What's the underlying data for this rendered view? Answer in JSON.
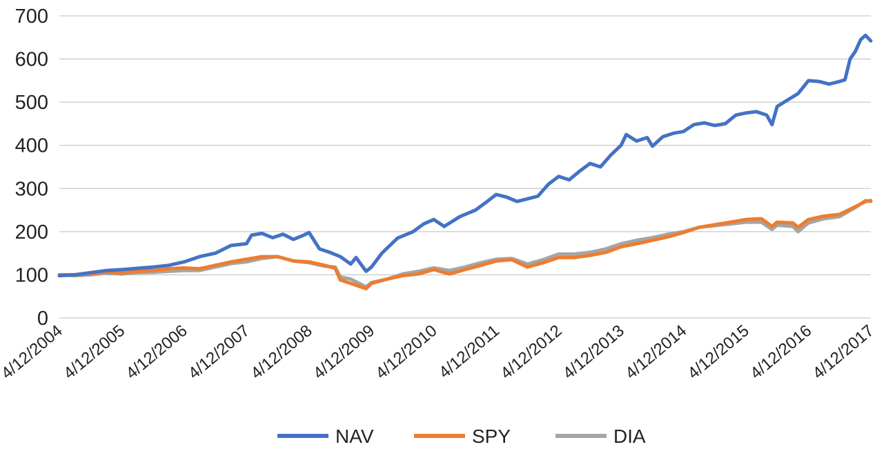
{
  "chart_data": {
    "type": "line",
    "title": "",
    "xlabel": "",
    "ylabel": "",
    "ylim": [
      0,
      700
    ],
    "xlim": [
      "4/12/2004",
      "4/12/2017"
    ],
    "yticks": [
      "0",
      "100",
      "200",
      "300",
      "400",
      "500",
      "600",
      "700"
    ],
    "xticks": [
      "4/12/2004",
      "4/12/2005",
      "4/12/2006",
      "4/12/2007",
      "4/12/2008",
      "4/12/2009",
      "4/12/2010",
      "4/12/2011",
      "4/12/2012",
      "4/12/2013",
      "4/12/2014",
      "4/12/2015",
      "4/12/2016",
      "4/12/2017"
    ],
    "grid": true,
    "legend_position": "bottom",
    "series": [
      {
        "name": "NAV",
        "color": "#4472C4",
        "points": [
          [
            "4/12/2004",
            98
          ],
          [
            "7/12/2004",
            100
          ],
          [
            "10/12/2004",
            105
          ],
          [
            "1/12/2005",
            110
          ],
          [
            "4/12/2005",
            112
          ],
          [
            "7/12/2005",
            115
          ],
          [
            "10/12/2005",
            118
          ],
          [
            "1/12/2006",
            122
          ],
          [
            "4/12/2006",
            130
          ],
          [
            "7/12/2006",
            142
          ],
          [
            "10/12/2006",
            150
          ],
          [
            "1/12/2007",
            168
          ],
          [
            "4/12/2007",
            172
          ],
          [
            "5/12/2007",
            192
          ],
          [
            "7/12/2007",
            196
          ],
          [
            "9/12/2007",
            186
          ],
          [
            "11/12/2007",
            194
          ],
          [
            "1/12/2008",
            182
          ],
          [
            "3/12/2008",
            192
          ],
          [
            "4/12/2008",
            198
          ],
          [
            "6/12/2008",
            160
          ],
          [
            "8/12/2008",
            152
          ],
          [
            "10/12/2008",
            142
          ],
          [
            "12/12/2008",
            125
          ],
          [
            "1/12/2009",
            140
          ],
          [
            "3/12/2009",
            108
          ],
          [
            "4/12/2009",
            118
          ],
          [
            "6/12/2009",
            150
          ],
          [
            "9/12/2009",
            185
          ],
          [
            "12/12/2009",
            200
          ],
          [
            "2/12/2010",
            218
          ],
          [
            "4/12/2010",
            228
          ],
          [
            "6/12/2010",
            212
          ],
          [
            "9/12/2010",
            235
          ],
          [
            "12/12/2010",
            250
          ],
          [
            "2/12/2011",
            268
          ],
          [
            "4/12/2011",
            286
          ],
          [
            "6/12/2011",
            280
          ],
          [
            "8/12/2011",
            270
          ],
          [
            "10/12/2011",
            276
          ],
          [
            "12/12/2011",
            282
          ],
          [
            "2/12/2012",
            310
          ],
          [
            "4/12/2012",
            328
          ],
          [
            "6/12/2012",
            320
          ],
          [
            "8/12/2012",
            340
          ],
          [
            "10/12/2012",
            358
          ],
          [
            "12/12/2012",
            350
          ],
          [
            "2/12/2013",
            378
          ],
          [
            "4/12/2013",
            400
          ],
          [
            "5/12/2013",
            425
          ],
          [
            "7/12/2013",
            410
          ],
          [
            "9/12/2013",
            418
          ],
          [
            "10/12/2013",
            398
          ],
          [
            "12/12/2013",
            420
          ],
          [
            "2/12/2014",
            428
          ],
          [
            "4/12/2014",
            432
          ],
          [
            "6/12/2014",
            448
          ],
          [
            "8/12/2014",
            452
          ],
          [
            "10/12/2014",
            446
          ],
          [
            "12/12/2014",
            450
          ],
          [
            "2/12/2015",
            470
          ],
          [
            "4/12/2015",
            475
          ],
          [
            "6/12/2015",
            478
          ],
          [
            "8/12/2015",
            470
          ],
          [
            "9/12/2015",
            448
          ],
          [
            "10/12/2015",
            490
          ],
          [
            "12/12/2015",
            505
          ],
          [
            "2/12/2016",
            520
          ],
          [
            "4/12/2016",
            550
          ],
          [
            "6/12/2016",
            548
          ],
          [
            "8/12/2016",
            542
          ],
          [
            "10/12/2016",
            548
          ],
          [
            "11/12/2016",
            552
          ],
          [
            "12/12/2016",
            600
          ],
          [
            "1/12/2017",
            618
          ],
          [
            "2/12/2017",
            645
          ],
          [
            "3/12/2017",
            655
          ],
          [
            "4/12/2017",
            642
          ]
        ]
      },
      {
        "name": "SPY",
        "color": "#ED7D31",
        "points": [
          [
            "4/12/2004",
            100
          ],
          [
            "7/12/2004",
            100
          ],
          [
            "10/12/2004",
            102
          ],
          [
            "1/12/2005",
            106
          ],
          [
            "4/12/2005",
            104
          ],
          [
            "7/12/2005",
            108
          ],
          [
            "10/12/2005",
            110
          ],
          [
            "1/12/2006",
            114
          ],
          [
            "4/12/2006",
            116
          ],
          [
            "7/12/2006",
            114
          ],
          [
            "10/12/2006",
            122
          ],
          [
            "1/12/2007",
            130
          ],
          [
            "4/12/2007",
            136
          ],
          [
            "7/12/2007",
            142
          ],
          [
            "10/12/2007",
            142
          ],
          [
            "1/12/2008",
            132
          ],
          [
            "4/12/2008",
            130
          ],
          [
            "7/12/2008",
            122
          ],
          [
            "9/12/2008",
            115
          ],
          [
            "10/12/2008",
            88
          ],
          [
            "12/12/2008",
            80
          ],
          [
            "3/12/2009",
            68
          ],
          [
            "4/12/2009",
            80
          ],
          [
            "7/12/2009",
            90
          ],
          [
            "10/12/2009",
            98
          ],
          [
            "1/12/2010",
            102
          ],
          [
            "4/12/2010",
            112
          ],
          [
            "7/12/2010",
            102
          ],
          [
            "10/12/2010",
            112
          ],
          [
            "1/12/2011",
            122
          ],
          [
            "4/12/2011",
            132
          ],
          [
            "7/12/2011",
            135
          ],
          [
            "10/12/2011",
            118
          ],
          [
            "1/12/2012",
            128
          ],
          [
            "4/12/2012",
            140
          ],
          [
            "7/12/2012",
            140
          ],
          [
            "10/12/2012",
            145
          ],
          [
            "1/12/2013",
            152
          ],
          [
            "4/12/2013",
            165
          ],
          [
            "7/12/2013",
            172
          ],
          [
            "10/12/2013",
            180
          ],
          [
            "1/12/2014",
            188
          ],
          [
            "4/12/2014",
            198
          ],
          [
            "7/12/2014",
            210
          ],
          [
            "10/12/2014",
            216
          ],
          [
            "1/12/2015",
            222
          ],
          [
            "4/12/2015",
            228
          ],
          [
            "7/12/2015",
            230
          ],
          [
            "9/12/2015",
            212
          ],
          [
            "10/12/2015",
            222
          ],
          [
            "1/12/2016",
            220
          ],
          [
            "2/12/2016",
            210
          ],
          [
            "4/12/2016",
            228
          ],
          [
            "7/12/2016",
            236
          ],
          [
            "10/12/2016",
            240
          ],
          [
            "1/12/2017",
            258
          ],
          [
            "3/12/2017",
            270
          ],
          [
            "4/12/2017",
            272
          ]
        ]
      },
      {
        "name": "DIA",
        "color": "#A5A5A5",
        "points": [
          [
            "4/12/2004",
            100
          ],
          [
            "7/12/2004",
            98
          ],
          [
            "10/12/2004",
            100
          ],
          [
            "1/12/2005",
            104
          ],
          [
            "4/12/2005",
            102
          ],
          [
            "7/12/2005",
            105
          ],
          [
            "10/12/2005",
            106
          ],
          [
            "1/12/2006",
            108
          ],
          [
            "4/12/2006",
            110
          ],
          [
            "7/12/2006",
            110
          ],
          [
            "10/12/2006",
            118
          ],
          [
            "1/12/2007",
            126
          ],
          [
            "4/12/2007",
            130
          ],
          [
            "7/12/2007",
            138
          ],
          [
            "10/12/2007",
            142
          ],
          [
            "1/12/2008",
            132
          ],
          [
            "4/12/2008",
            128
          ],
          [
            "7/12/2008",
            120
          ],
          [
            "9/12/2008",
            118
          ],
          [
            "10/12/2008",
            95
          ],
          [
            "12/12/2008",
            90
          ],
          [
            "3/12/2009",
            72
          ],
          [
            "4/12/2009",
            82
          ],
          [
            "7/12/2009",
            90
          ],
          [
            "10/12/2009",
            102
          ],
          [
            "1/12/2010",
            108
          ],
          [
            "4/12/2010",
            116
          ],
          [
            "7/12/2010",
            110
          ],
          [
            "10/12/2010",
            118
          ],
          [
            "1/12/2011",
            128
          ],
          [
            "4/12/2011",
            136
          ],
          [
            "7/12/2011",
            138
          ],
          [
            "10/12/2011",
            125
          ],
          [
            "1/12/2012",
            135
          ],
          [
            "4/12/2012",
            148
          ],
          [
            "7/12/2012",
            148
          ],
          [
            "10/12/2012",
            152
          ],
          [
            "1/12/2013",
            160
          ],
          [
            "4/12/2013",
            172
          ],
          [
            "7/12/2013",
            180
          ],
          [
            "10/12/2013",
            186
          ],
          [
            "1/12/2014",
            194
          ],
          [
            "4/12/2014",
            200
          ],
          [
            "7/12/2014",
            210
          ],
          [
            "10/12/2014",
            214
          ],
          [
            "1/12/2015",
            218
          ],
          [
            "4/12/2015",
            222
          ],
          [
            "7/12/2015",
            222
          ],
          [
            "9/12/2015",
            205
          ],
          [
            "10/12/2015",
            215
          ],
          [
            "1/12/2016",
            212
          ],
          [
            "2/12/2016",
            200
          ],
          [
            "4/12/2016",
            220
          ],
          [
            "7/12/2016",
            230
          ],
          [
            "10/12/2016",
            235
          ],
          [
            "1/12/2017",
            256
          ],
          [
            "3/12/2017",
            272
          ],
          [
            "4/12/2017",
            270
          ]
        ]
      }
    ]
  }
}
